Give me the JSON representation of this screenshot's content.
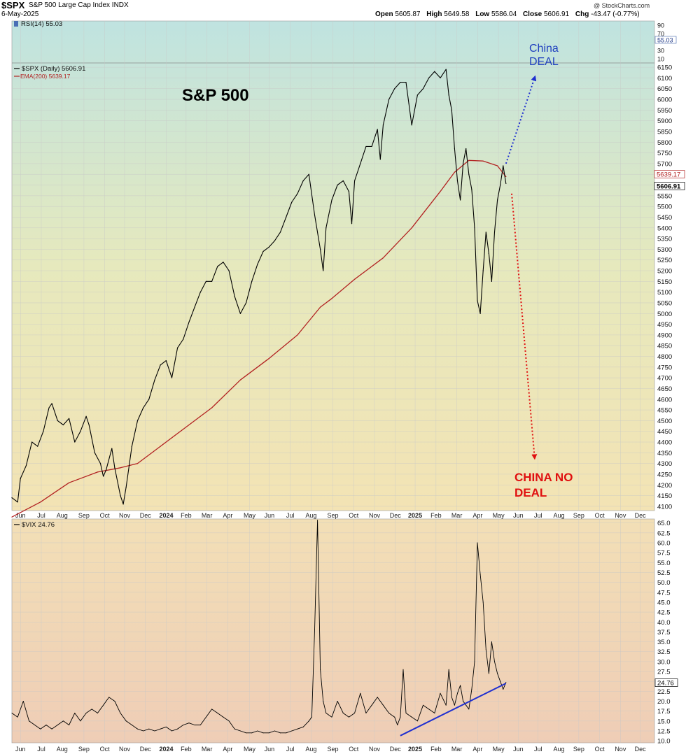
{
  "header": {
    "symbol": "$SPX",
    "description": "S&P 500 Large Cap Index INDX",
    "date": "6-May-2025",
    "brand": "@ StockCharts.com",
    "ohlc": {
      "open_label": "Open",
      "open": "5605.87",
      "high_label": "High",
      "high": "5649.58",
      "low_label": "Low",
      "low": "5586.04",
      "close_label": "Close",
      "close": "5606.91",
      "chg_label": "Chg",
      "chg": "-43.47 (-0.77%)"
    }
  },
  "annotations": {
    "title": "S&P 500",
    "bull": "China\nDEAL",
    "bear": "CHINA NO\nDEAL"
  },
  "colors": {
    "price": "#000000",
    "ema": "#b22222",
    "vix": "#000000",
    "trendline": "#1f2fd0",
    "bull_text": "#1f3fbf",
    "bear_text": "#e01010",
    "grid": "#c8c8c8"
  },
  "chart_data": [
    {
      "type": "line",
      "panel": "rsi",
      "legend": "RSI(14) 55.03",
      "ticks": [
        "90",
        "70",
        "55.03",
        "30",
        "10"
      ],
      "ylim": [
        0,
        100
      ],
      "value": 55.03,
      "series": [
        {
          "name": "RSI(14)",
          "last": 55.03
        }
      ]
    },
    {
      "type": "line",
      "panel": "price",
      "legend_price": "$SPX (Daily) 5606.91",
      "legend_ema": "EMA(200) 5639.17",
      "ylim": [
        4080,
        6170
      ],
      "y_ticks": [
        "4100",
        "4150",
        "4200",
        "4250",
        "4300",
        "4350",
        "4400",
        "4450",
        "4500",
        "4550",
        "4600",
        "4650",
        "4700",
        "4750",
        "4800",
        "4850",
        "4900",
        "4950",
        "5000",
        "5050",
        "5100",
        "5150",
        "5200",
        "5250",
        "5300",
        "5350",
        "5400",
        "5450",
        "5500",
        "5550",
        "5600",
        "5650",
        "5700",
        "5750",
        "5800",
        "5850",
        "5900",
        "5950",
        "6000",
        "6050",
        "6100",
        "6150"
      ],
      "value_tags": [
        "5639.17",
        "5606.91"
      ],
      "x_labels": [
        "Jun",
        "Jul",
        "Aug",
        "Sep",
        "Oct",
        "Nov",
        "Dec",
        "2024",
        "Feb",
        "Mar",
        "Apr",
        "May",
        "Jun",
        "Jul",
        "Aug",
        "Sep",
        "Oct",
        "Nov",
        "Dec",
        "2025",
        "Feb",
        "Mar",
        "Apr",
        "May",
        "Jun",
        "Jul",
        "Aug",
        "Sep",
        "Oct",
        "Nov",
        "Dec"
      ],
      "series": [
        {
          "name": "$SPX (Daily)",
          "points": [
            [
              0,
              4140
            ],
            [
              2,
              4120
            ],
            [
              3,
              4230
            ],
            [
              5,
              4290
            ],
            [
              7,
              4400
            ],
            [
              9,
              4380
            ],
            [
              11,
              4450
            ],
            [
              13,
              4560
            ],
            [
              14,
              4580
            ],
            [
              16,
              4500
            ],
            [
              18,
              4480
            ],
            [
              20,
              4510
            ],
            [
              22,
              4400
            ],
            [
              24,
              4450
            ],
            [
              26,
              4520
            ],
            [
              27,
              4480
            ],
            [
              29,
              4350
            ],
            [
              31,
              4300
            ],
            [
              32,
              4240
            ],
            [
              33,
              4270
            ],
            [
              35,
              4370
            ],
            [
              36,
              4280
            ],
            [
              38,
              4150
            ],
            [
              39,
              4110
            ],
            [
              40,
              4190
            ],
            [
              42,
              4380
            ],
            [
              44,
              4500
            ],
            [
              46,
              4560
            ],
            [
              48,
              4600
            ],
            [
              50,
              4690
            ],
            [
              52,
              4760
            ],
            [
              54,
              4780
            ],
            [
              56,
              4700
            ],
            [
              58,
              4840
            ],
            [
              60,
              4880
            ],
            [
              62,
              4960
            ],
            [
              64,
              5030
            ],
            [
              66,
              5100
            ],
            [
              68,
              5150
            ],
            [
              70,
              5150
            ],
            [
              72,
              5220
            ],
            [
              74,
              5240
            ],
            [
              76,
              5200
            ],
            [
              78,
              5080
            ],
            [
              80,
              5000
            ],
            [
              82,
              5050
            ],
            [
              84,
              5150
            ],
            [
              86,
              5230
            ],
            [
              88,
              5290
            ],
            [
              90,
              5310
            ],
            [
              92,
              5340
            ],
            [
              94,
              5380
            ],
            [
              96,
              5450
            ],
            [
              98,
              5520
            ],
            [
              100,
              5560
            ],
            [
              102,
              5620
            ],
            [
              104,
              5650
            ],
            [
              106,
              5460
            ],
            [
              108,
              5300
            ],
            [
              109,
              5200
            ],
            [
              110,
              5400
            ],
            [
              112,
              5530
            ],
            [
              114,
              5600
            ],
            [
              116,
              5620
            ],
            [
              118,
              5570
            ],
            [
              119,
              5420
            ],
            [
              120,
              5620
            ],
            [
              122,
              5700
            ],
            [
              124,
              5780
            ],
            [
              126,
              5780
            ],
            [
              128,
              5860
            ],
            [
              129,
              5720
            ],
            [
              130,
              5880
            ],
            [
              132,
              6000
            ],
            [
              134,
              6050
            ],
            [
              136,
              6080
            ],
            [
              138,
              6080
            ],
            [
              139,
              5980
            ],
            [
              140,
              5880
            ],
            [
              142,
              6020
            ],
            [
              144,
              6050
            ],
            [
              146,
              6100
            ],
            [
              148,
              6130
            ],
            [
              150,
              6100
            ],
            [
              152,
              6140
            ],
            [
              153,
              6020
            ],
            [
              154,
              5950
            ],
            [
              155,
              5770
            ],
            [
              156,
              5620
            ],
            [
              157,
              5530
            ],
            [
              158,
              5700
            ],
            [
              159,
              5770
            ],
            [
              160,
              5650
            ],
            [
              161,
              5580
            ],
            [
              162,
              5400
            ],
            [
              163,
              5060
            ],
            [
              164,
              5000
            ],
            [
              165,
              5200
            ],
            [
              166,
              5380
            ],
            [
              167,
              5280
            ],
            [
              168,
              5150
            ],
            [
              169,
              5380
            ],
            [
              170,
              5530
            ],
            [
              171,
              5600
            ],
            [
              172,
              5690
            ],
            [
              173,
              5606.91
            ]
          ]
        },
        {
          "name": "EMA(200)",
          "points": [
            [
              0,
              4050
            ],
            [
              10,
              4120
            ],
            [
              20,
              4210
            ],
            [
              30,
              4260
            ],
            [
              38,
              4280
            ],
            [
              44,
              4300
            ],
            [
              52,
              4380
            ],
            [
              60,
              4460
            ],
            [
              70,
              4560
            ],
            [
              80,
              4690
            ],
            [
              90,
              4790
            ],
            [
              100,
              4900
            ],
            [
              108,
              5030
            ],
            [
              112,
              5070
            ],
            [
              120,
              5160
            ],
            [
              130,
              5260
            ],
            [
              140,
              5400
            ],
            [
              150,
              5570
            ],
            [
              155,
              5660
            ],
            [
              160,
              5715
            ],
            [
              165,
              5712
            ],
            [
              170,
              5690
            ],
            [
              173,
              5639.17
            ]
          ]
        }
      ],
      "annotation_arrows": [
        {
          "label": "China DEAL",
          "from": [
            173,
            5700
          ],
          "to": [
            183,
            6100
          ]
        },
        {
          "label": "CHINA NO DEAL",
          "from": [
            175,
            5560
          ],
          "to": [
            183,
            4330
          ]
        }
      ]
    },
    {
      "type": "line",
      "panel": "vix",
      "legend": "$VIX 24.76",
      "ylim": [
        9.5,
        66
      ],
      "y_ticks": [
        "65.0",
        "62.5",
        "60.0",
        "57.5",
        "55.0",
        "52.5",
        "50.0",
        "47.5",
        "45.0",
        "42.5",
        "40.0",
        "37.5",
        "35.0",
        "32.5",
        "30.0",
        "27.5",
        "25.0",
        "22.5",
        "20.0",
        "17.5",
        "15.0",
        "12.5",
        "10.0"
      ],
      "value_tag": "24.76",
      "x_labels": [
        "Jun",
        "Jul",
        "Aug",
        "Sep",
        "Oct",
        "Nov",
        "Dec",
        "2024",
        "Feb",
        "Mar",
        "Apr",
        "May",
        "Jun",
        "Jul",
        "Aug",
        "Sep",
        "Oct",
        "Nov",
        "Dec",
        "2025",
        "Feb",
        "Mar",
        "Apr",
        "May",
        "Jun",
        "Jul",
        "Aug",
        "Sep",
        "Oct",
        "Nov",
        "Dec"
      ],
      "series": [
        {
          "name": "$VIX",
          "points": [
            [
              0,
              17
            ],
            [
              2,
              16
            ],
            [
              4,
              20
            ],
            [
              6,
              15
            ],
            [
              8,
              14
            ],
            [
              10,
              13
            ],
            [
              12,
              14
            ],
            [
              14,
              13
            ],
            [
              16,
              14
            ],
            [
              18,
              15
            ],
            [
              20,
              14
            ],
            [
              22,
              17
            ],
            [
              24,
              15
            ],
            [
              26,
              17
            ],
            [
              28,
              18
            ],
            [
              30,
              17
            ],
            [
              32,
              19
            ],
            [
              34,
              21
            ],
            [
              36,
              20
            ],
            [
              38,
              17
            ],
            [
              40,
              15
            ],
            [
              42,
              14
            ],
            [
              44,
              13
            ],
            [
              46,
              12.5
            ],
            [
              48,
              13
            ],
            [
              50,
              12.5
            ],
            [
              52,
              13
            ],
            [
              54,
              13.5
            ],
            [
              56,
              12.5
            ],
            [
              58,
              13
            ],
            [
              60,
              14
            ],
            [
              62,
              14.5
            ],
            [
              64,
              14
            ],
            [
              66,
              14
            ],
            [
              68,
              16
            ],
            [
              70,
              18
            ],
            [
              72,
              17
            ],
            [
              74,
              16
            ],
            [
              76,
              15
            ],
            [
              78,
              13
            ],
            [
              80,
              12.5
            ],
            [
              82,
              12
            ],
            [
              84,
              12
            ],
            [
              86,
              12.5
            ],
            [
              88,
              12
            ],
            [
              90,
              12
            ],
            [
              92,
              12.5
            ],
            [
              94,
              12
            ],
            [
              96,
              12
            ],
            [
              98,
              12.5
            ],
            [
              100,
              13
            ],
            [
              102,
              13.5
            ],
            [
              104,
              15
            ],
            [
              105,
              16
            ],
            [
              106,
              38
            ],
            [
              107,
              65.7
            ],
            [
              108,
              28
            ],
            [
              109,
              20
            ],
            [
              110,
              17
            ],
            [
              112,
              16
            ],
            [
              114,
              20
            ],
            [
              116,
              17
            ],
            [
              118,
              16
            ],
            [
              120,
              17
            ],
            [
              122,
              22
            ],
            [
              124,
              17
            ],
            [
              126,
              19
            ],
            [
              128,
              21
            ],
            [
              130,
              19
            ],
            [
              132,
              17
            ],
            [
              134,
              16
            ],
            [
              135,
              14
            ],
            [
              136,
              16
            ],
            [
              137,
              28
            ],
            [
              138,
              17
            ],
            [
              140,
              16
            ],
            [
              142,
              15
            ],
            [
              144,
              19
            ],
            [
              146,
              18
            ],
            [
              148,
              17
            ],
            [
              150,
              22
            ],
            [
              152,
              19
            ],
            [
              153,
              28
            ],
            [
              154,
              21
            ],
            [
              155,
              19
            ],
            [
              156,
              22
            ],
            [
              157,
              24
            ],
            [
              158,
              20
            ],
            [
              159,
              19
            ],
            [
              160,
              18
            ],
            [
              161,
              23
            ],
            [
              162,
              30
            ],
            [
              163,
              60
            ],
            [
              164,
              52
            ],
            [
              165,
              45
            ],
            [
              166,
              33
            ],
            [
              167,
              27
            ],
            [
              168,
              35
            ],
            [
              169,
              30
            ],
            [
              170,
              27
            ],
            [
              171,
              25
            ],
            [
              172,
              23
            ],
            [
              173,
              24.76
            ]
          ]
        },
        {
          "name": "trendline",
          "points": [
            [
              136,
              11.3
            ],
            [
              173,
              24.5
            ]
          ]
        }
      ]
    }
  ]
}
